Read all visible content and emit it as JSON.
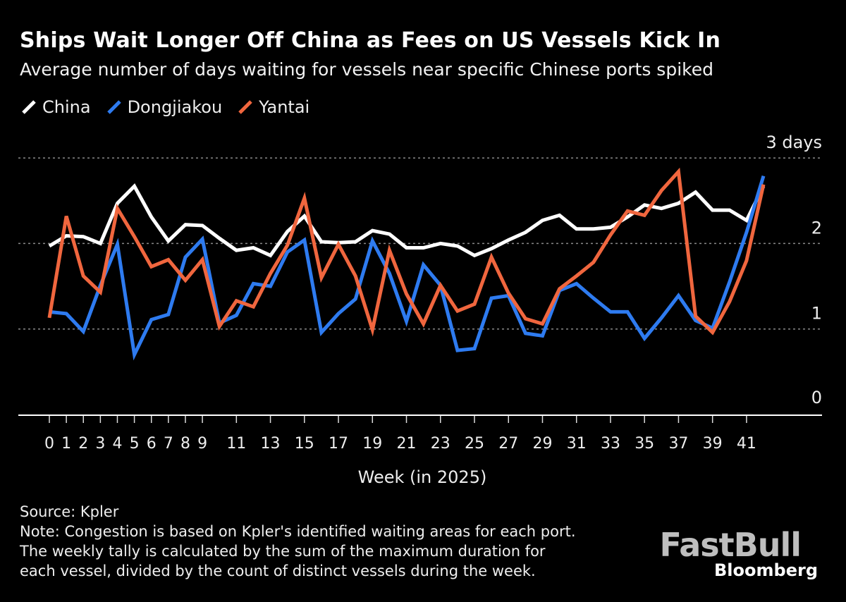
{
  "header": {
    "title": "Ships Wait Longer Off China as Fees on US Vessels Kick In",
    "subtitle": "Average number of days waiting for vessels near specific Chinese ports spiked"
  },
  "legend": [
    {
      "name": "China",
      "color": "#ffffff"
    },
    {
      "name": "Dongjiakou",
      "color": "#2e7bf0"
    },
    {
      "name": "Yantai",
      "color": "#f0663e"
    }
  ],
  "chart_data": {
    "type": "line",
    "title": "Ships Wait Longer Off China as Fees on US Vessels Kick In",
    "subtitle": "Average number of days waiting for vessels near specific Chinese ports spiked",
    "xlabel": "Week (in 2025)",
    "ylabel": "days",
    "ylim": [
      0,
      3
    ],
    "xlim": [
      0,
      45
    ],
    "y_ticks": [
      {
        "value": 0,
        "label": "0"
      },
      {
        "value": 1,
        "label": "1"
      },
      {
        "value": 2,
        "label": "2"
      },
      {
        "value": 3,
        "label": "3 days"
      }
    ],
    "x_ticks": [
      0,
      1,
      2,
      3,
      4,
      5,
      6,
      7,
      8,
      9,
      11,
      13,
      15,
      17,
      19,
      21,
      23,
      25,
      27,
      29,
      31,
      33,
      35,
      37,
      39,
      41
    ],
    "grid": true,
    "legend_position": "top-left",
    "x": [
      0,
      1,
      2,
      3,
      4,
      5,
      6,
      7,
      8,
      9,
      10,
      11,
      12,
      13,
      14,
      15,
      16,
      17,
      18,
      19,
      20,
      21,
      22,
      23,
      24,
      25,
      26,
      27,
      28,
      29,
      30,
      31,
      32,
      33,
      34,
      35,
      36,
      37,
      38,
      39,
      40,
      41,
      42
    ],
    "series": [
      {
        "name": "China",
        "color": "#ffffff",
        "values": [
          1.97,
          2.09,
          2.08,
          2.0,
          2.47,
          2.67,
          2.31,
          2.03,
          2.22,
          2.21,
          2.06,
          1.92,
          1.95,
          1.86,
          2.14,
          2.32,
          2.02,
          2.01,
          2.02,
          2.15,
          2.11,
          1.95,
          1.95,
          2.0,
          1.97,
          1.86,
          1.94,
          2.04,
          2.13,
          2.27,
          2.33,
          2.17,
          2.17,
          2.19,
          2.31,
          2.45,
          2.41,
          2.47,
          2.6,
          2.39,
          2.39,
          2.27,
          2.67
        ]
      },
      {
        "name": "Dongjiakou",
        "color": "#2e7bf0",
        "values": [
          1.2,
          1.18,
          0.97,
          1.51,
          1.99,
          0.7,
          1.11,
          1.17,
          1.84,
          2.05,
          1.07,
          1.16,
          1.53,
          1.5,
          1.9,
          2.04,
          0.96,
          1.18,
          1.35,
          2.03,
          1.65,
          1.09,
          1.75,
          1.51,
          0.75,
          0.77,
          1.36,
          1.39,
          0.95,
          0.92,
          1.45,
          1.53,
          1.36,
          1.2,
          1.2,
          0.89,
          1.13,
          1.39,
          1.1,
          1.01,
          1.55,
          2.13,
          2.79
        ]
      },
      {
        "name": "Yantai",
        "color": "#f0663e",
        "values": [
          1.13,
          2.32,
          1.62,
          1.43,
          2.41,
          2.08,
          1.73,
          1.81,
          1.57,
          1.81,
          1.03,
          1.33,
          1.26,
          1.65,
          1.98,
          2.53,
          1.6,
          1.99,
          1.62,
          0.99,
          1.92,
          1.41,
          1.06,
          1.51,
          1.21,
          1.29,
          1.84,
          1.42,
          1.12,
          1.06,
          1.47,
          1.62,
          1.78,
          2.1,
          2.38,
          2.33,
          2.62,
          2.84,
          1.15,
          0.96,
          1.32,
          1.8,
          2.69
        ]
      }
    ]
  },
  "footer": {
    "source": "Source: Kpler",
    "note_lines": [
      "Note: Congestion is based on Kpler's identified waiting areas for each port.",
      "The weekly tally is calculated by the sum of the maximum duration for",
      "each vessel, divided by the count of distinct vessels during the week."
    ]
  },
  "branding": {
    "watermark": "FastBull",
    "publisher": "Bloomberg"
  }
}
